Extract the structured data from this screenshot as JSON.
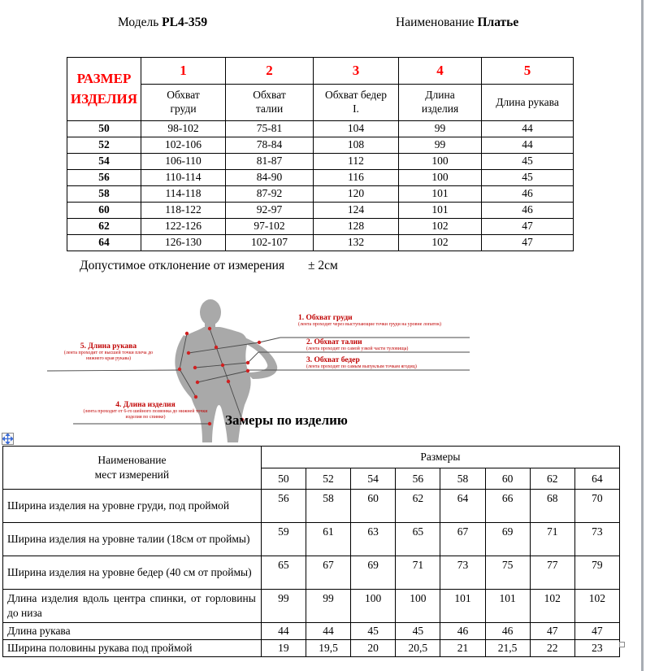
{
  "colors": {
    "accent_red": "#ff0000",
    "figure_red": "#c00000",
    "silhouette_gray": "#a9a9a9"
  },
  "header": {
    "model_label": "Модель",
    "model_value": "PL4-359",
    "name_label": "Наименование",
    "name_value": "Платье"
  },
  "size_table": {
    "corner": "РАЗМЕР\nИЗДЕЛИЯ",
    "col_numbers": [
      "1",
      "2",
      "3",
      "4",
      "5"
    ],
    "col_names": [
      "Обхват\nгруди",
      "Обхват\nталии",
      "Обхват бедер\nI.",
      "Длина\nизделия",
      "Длина рукава"
    ],
    "rows": [
      {
        "size": "50",
        "values": [
          "98-102",
          "75-81",
          "104",
          "99",
          "44"
        ]
      },
      {
        "size": "52",
        "values": [
          "102-106",
          "78-84",
          "108",
          "99",
          "44"
        ]
      },
      {
        "size": "54",
        "values": [
          "106-110",
          "81-87",
          "112",
          "100",
          "45"
        ]
      },
      {
        "size": "56",
        "values": [
          "110-114",
          "84-90",
          "116",
          "100",
          "45"
        ]
      },
      {
        "size": "58",
        "values": [
          "114-118",
          "87-92",
          "120",
          "101",
          "46"
        ]
      },
      {
        "size": "60",
        "values": [
          "118-122",
          "92-97",
          "124",
          "101",
          "46"
        ]
      },
      {
        "size": "62",
        "values": [
          "122-126",
          "97-102",
          "128",
          "102",
          "47"
        ]
      },
      {
        "size": "64",
        "values": [
          "126-130",
          "102-107",
          "132",
          "102",
          "47"
        ]
      }
    ]
  },
  "tolerance": {
    "text": "Допустимое отклонение от измерения",
    "value": "± 2см"
  },
  "figure": {
    "labels": [
      {
        "title": "1. Обхват груди",
        "desc": "(лента проходит через выступающие точки груди на уровне лопаток)"
      },
      {
        "title": "2. Обхват талии",
        "desc": "(лента проходит по самой узкой части туловища)"
      },
      {
        "title": "3. Обхват бедер",
        "desc": "(лента проходит по самым выпуклым точкам ягодиц)"
      },
      {
        "title": "4. Длина изделия",
        "desc": "(лента проходит от 6-го шейного позвонка до нижней точки изделия по спинке)"
      },
      {
        "title": "5. Длина рукава",
        "desc": "(лента проходит от высшей точки плеча до нижнего края рукава)"
      }
    ]
  },
  "section_title": "Замеры по изделию",
  "measure_table": {
    "name_header": "Наименование\nмест измерений",
    "sizes_header": "Размеры",
    "sizes": [
      "50",
      "52",
      "54",
      "56",
      "58",
      "60",
      "62",
      "64"
    ],
    "rows": [
      {
        "name": "Ширина изделия на уровне груди, под проймой",
        "tall": true,
        "values": [
          "56",
          "58",
          "60",
          "62",
          "64",
          "66",
          "68",
          "70"
        ]
      },
      {
        "name": "Ширина изделия на уровне талии (18см от проймы)",
        "tall": true,
        "values": [
          "59",
          "61",
          "63",
          "65",
          "67",
          "69",
          "71",
          "73"
        ]
      },
      {
        "name": "Ширина изделия на уровне бедер (40 см от проймы)",
        "tall": true,
        "values": [
          "65",
          "67",
          "69",
          "71",
          "73",
          "75",
          "77",
          "79"
        ]
      },
      {
        "name": "Длина изделия вдоль центра спинки, от горловины до низа",
        "tall": true,
        "values": [
          "99",
          "99",
          "100",
          "100",
          "101",
          "101",
          "102",
          "102"
        ]
      },
      {
        "name": "Длина рукава",
        "tall": false,
        "values": [
          "44",
          "44",
          "45",
          "45",
          "46",
          "46",
          "47",
          "47"
        ]
      },
      {
        "name": "Ширина половины рукава под проймой",
        "tall": false,
        "values": [
          "19",
          "19,5",
          "20",
          "20,5",
          "21",
          "21,5",
          "22",
          "23"
        ]
      }
    ]
  }
}
